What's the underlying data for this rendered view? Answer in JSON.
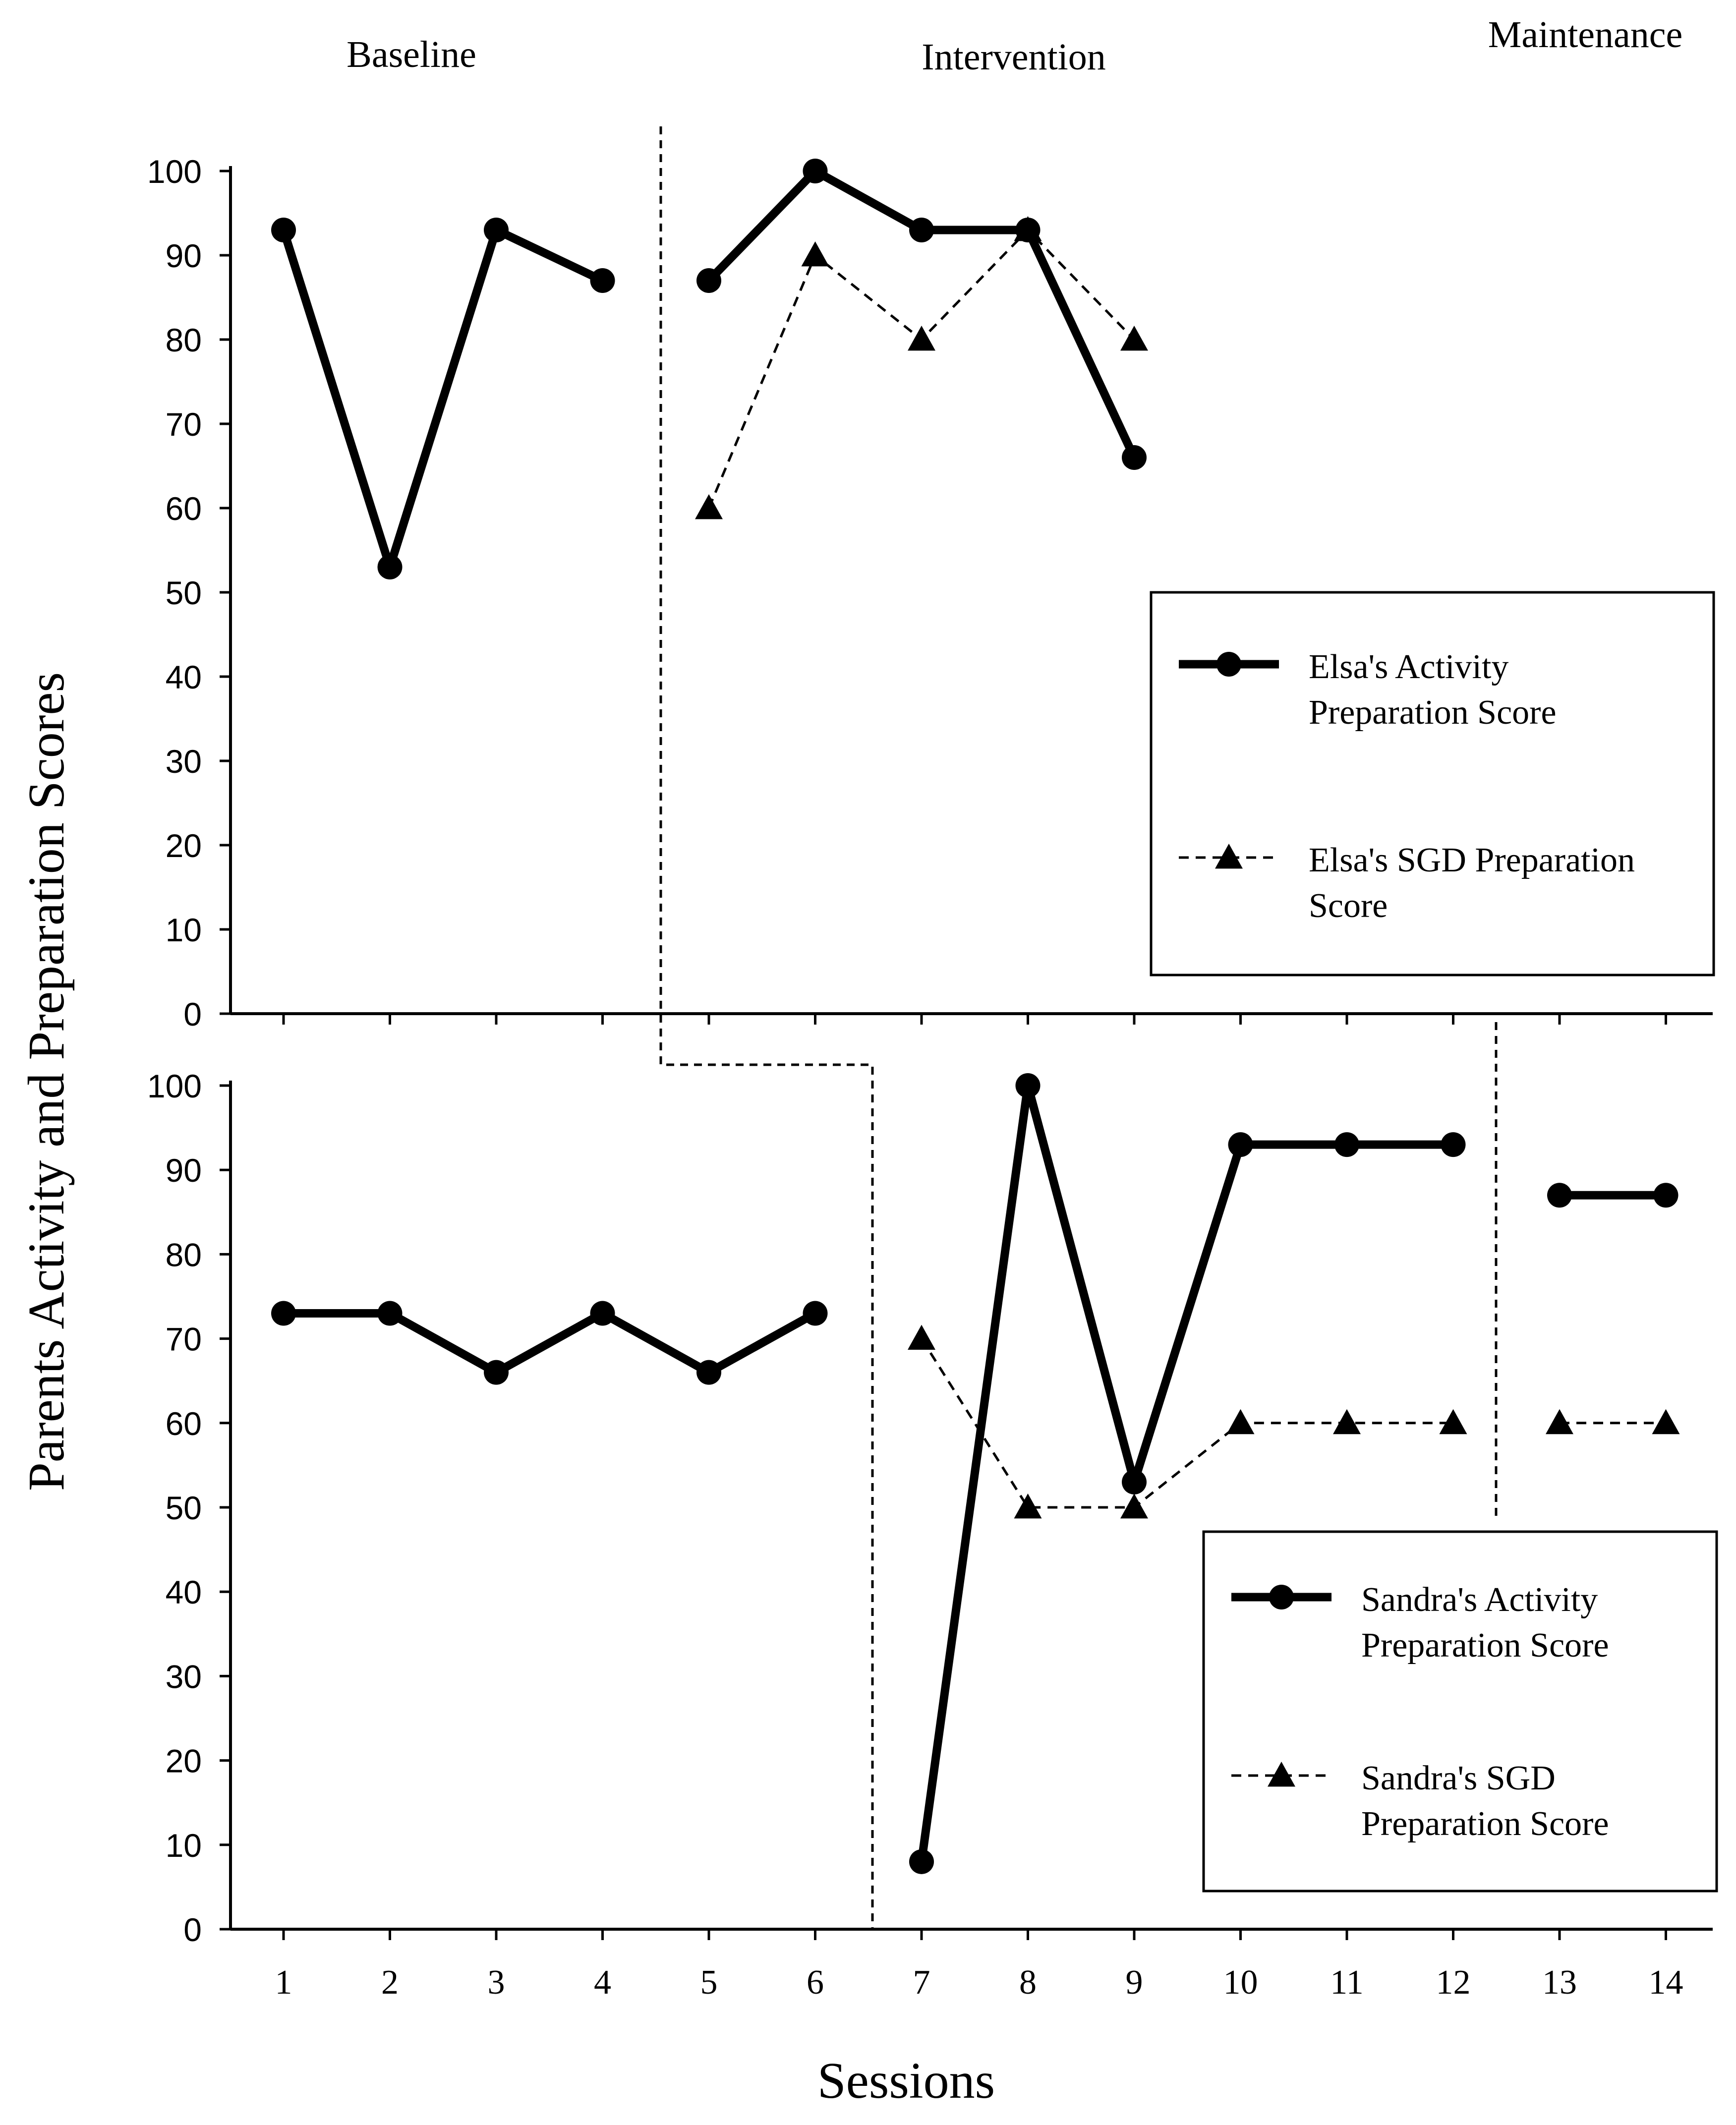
{
  "phases": [
    "Baseline",
    "Intervention",
    "Maintenance"
  ],
  "xlabel": "Sessions",
  "ylabel": "Parents Activity and Preparation Scores",
  "colors": {
    "line": "#000000",
    "background": "#ffffff"
  },
  "chart_data": [
    {
      "type": "line",
      "panel": "top",
      "x": [
        1,
        2,
        3,
        4,
        5,
        6,
        7,
        8,
        9,
        10,
        11,
        12,
        13,
        14
      ],
      "categories": [
        "1",
        "2",
        "3",
        "4",
        "5",
        "6",
        "7",
        "8",
        "9",
        "10",
        "11",
        "12",
        "13",
        "14"
      ],
      "ylim": [
        0,
        100
      ],
      "yticks": [
        0,
        10,
        20,
        30,
        40,
        50,
        60,
        70,
        80,
        90,
        100
      ],
      "series": [
        {
          "name": "Elsa's Activity Preparation Score",
          "label_lines": [
            "Elsa's Activity",
            "Preparation Score"
          ],
          "marker": "circle",
          "style": "solid",
          "segments": [
            {
              "x": [
                1,
                2,
                3,
                4
              ],
              "y": [
                93,
                53,
                93,
                87
              ]
            },
            {
              "x": [
                5,
                6,
                7,
                8,
                9
              ],
              "y": [
                87,
                100,
                93,
                93,
                66
              ]
            }
          ]
        },
        {
          "name": "Elsa's SGD Preparation Score",
          "label_lines": [
            "Elsa's SGD Preparation",
            "Score"
          ],
          "marker": "triangle",
          "style": "dashed",
          "segments": [
            {
              "x": [
                5,
                6,
                7,
                8,
                9
              ],
              "y": [
                60,
                90,
                80,
                93,
                80
              ]
            }
          ]
        }
      ]
    },
    {
      "type": "line",
      "panel": "bottom",
      "x": [
        1,
        2,
        3,
        4,
        5,
        6,
        7,
        8,
        9,
        10,
        11,
        12,
        13,
        14
      ],
      "categories": [
        "1",
        "2",
        "3",
        "4",
        "5",
        "6",
        "7",
        "8",
        "9",
        "10",
        "11",
        "12",
        "13",
        "14"
      ],
      "ylim": [
        0,
        100
      ],
      "yticks": [
        0,
        10,
        20,
        30,
        40,
        50,
        60,
        70,
        80,
        90,
        100
      ],
      "series": [
        {
          "name": "Sandra's Activity Preparation Score",
          "label_lines": [
            "Sandra's Activity",
            "Preparation Score"
          ],
          "marker": "circle",
          "style": "solid",
          "segments": [
            {
              "x": [
                1,
                2,
                3,
                4,
                5,
                6
              ],
              "y": [
                73,
                73,
                66,
                73,
                66,
                73
              ]
            },
            {
              "x": [
                7,
                8,
                9,
                10,
                11,
                12
              ],
              "y": [
                8,
                100,
                53,
                93,
                93,
                93
              ]
            },
            {
              "x": [
                13,
                14
              ],
              "y": [
                87,
                87
              ]
            }
          ]
        },
        {
          "name": "Sandra's SGD Preparation Score",
          "label_lines": [
            "Sandra's SGD",
            "Preparation Score"
          ],
          "marker": "triangle",
          "style": "dashed",
          "segments": [
            {
              "x": [
                7,
                8,
                9,
                10,
                11,
                12
              ],
              "y": [
                70,
                50,
                50,
                60,
                60,
                60
              ]
            },
            {
              "x": [
                13,
                14
              ],
              "y": [
                60,
                60
              ]
            }
          ]
        }
      ]
    }
  ]
}
